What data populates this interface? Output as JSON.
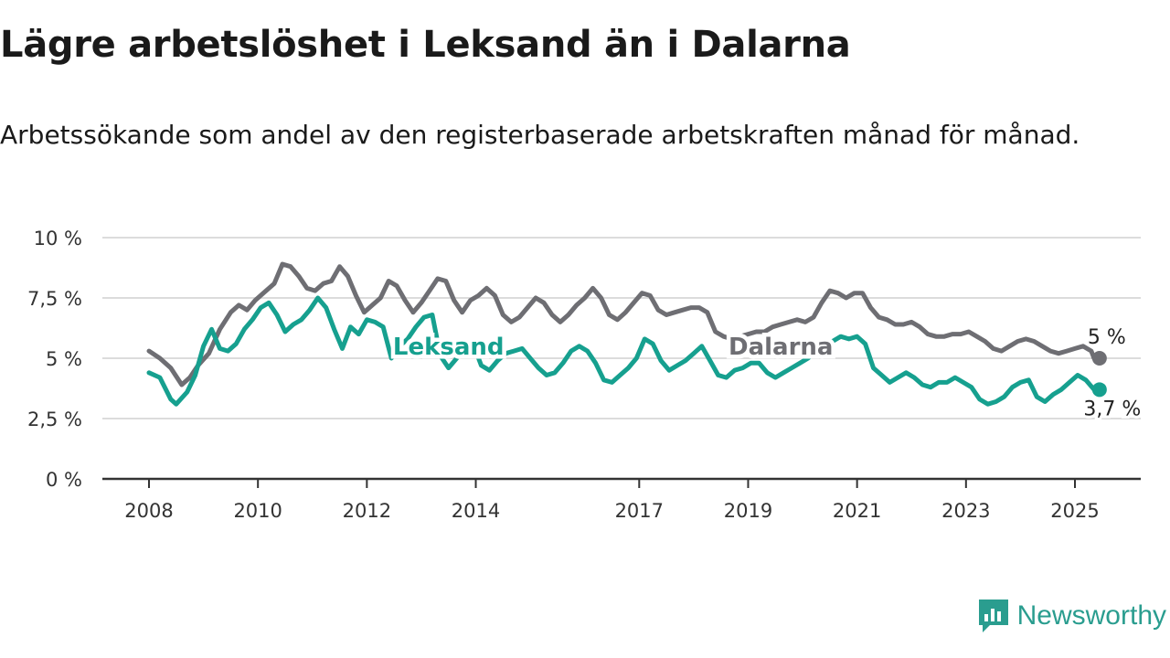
{
  "title": "Lägre arbetslöshet i Leksand än i Dalarna",
  "subtitle": "Arbetssökande som andel av den registerbaserade arbetskraften månad för månad.",
  "brand": {
    "name": "Newsworthy",
    "icon": "newsworthy-logo-icon",
    "color": "#2a9d8f"
  },
  "chart_data": {
    "type": "line",
    "xlabel": "",
    "ylabel": "",
    "xlim": [
      2008,
      2026.2
    ],
    "ylim": [
      0,
      10
    ],
    "x_ticks": [
      2008,
      2010,
      2012,
      2014,
      2017,
      2019,
      2021,
      2023,
      2025
    ],
    "x_tick_labels": [
      "2008",
      "2010",
      "2012",
      "2014",
      "2017",
      "2019",
      "2021",
      "2023",
      "2025"
    ],
    "y_ticks": [
      0,
      2.5,
      5,
      7.5,
      10
    ],
    "y_tick_labels": [
      "0 %",
      "2,5 %",
      "5 %",
      "7,5 %",
      "10 %"
    ],
    "grid": true,
    "series": [
      {
        "name": "Dalarna",
        "color": "#6e6e73",
        "end_label": "5 %",
        "x": [
          2008.0,
          2008.2,
          2008.4,
          2008.6,
          2008.75,
          2008.9,
          2009.1,
          2009.3,
          2009.5,
          2009.65,
          2009.8,
          2009.95,
          2010.1,
          2010.3,
          2010.45,
          2010.6,
          2010.75,
          2010.9,
          2011.05,
          2011.2,
          2011.35,
          2011.5,
          2011.65,
          2011.8,
          2011.95,
          2012.1,
          2012.25,
          2012.4,
          2012.55,
          2012.7,
          2012.85,
          2013.0,
          2013.15,
          2013.3,
          2013.45,
          2013.6,
          2013.75,
          2013.9,
          2014.05,
          2014.2,
          2014.35,
          2014.5,
          2014.65,
          2014.8,
          2014.95,
          2015.1,
          2015.25,
          2015.4,
          2015.55,
          2015.7,
          2015.85,
          2016.0,
          2016.15,
          2016.3,
          2016.45,
          2016.6,
          2016.75,
          2016.9,
          2017.05,
          2017.2,
          2017.35,
          2017.5,
          2017.65,
          2017.8,
          2017.95,
          2018.1,
          2018.25,
          2018.4,
          2018.55,
          2018.7,
          2018.85,
          2019.0,
          2019.15,
          2019.3,
          2019.45,
          2019.6,
          2019.75,
          2019.9,
          2020.05,
          2020.2,
          2020.35,
          2020.5,
          2020.65,
          2020.8,
          2020.95,
          2021.1,
          2021.25,
          2021.4,
          2021.55,
          2021.7,
          2021.85,
          2022.0,
          2022.15,
          2022.3,
          2022.45,
          2022.6,
          2022.75,
          2022.9,
          2023.05,
          2023.2,
          2023.35,
          2023.5,
          2023.65,
          2023.8,
          2023.95,
          2024.1,
          2024.25,
          2024.4,
          2024.55,
          2024.7,
          2024.85,
          2025.0,
          2025.15,
          2025.3,
          2025.35
        ],
        "y": [
          5.3,
          5.0,
          4.6,
          3.9,
          4.2,
          4.7,
          5.2,
          6.2,
          6.9,
          7.2,
          7.0,
          7.4,
          7.7,
          8.1,
          8.9,
          8.8,
          8.4,
          7.9,
          7.8,
          8.1,
          8.2,
          8.8,
          8.4,
          7.6,
          6.9,
          7.2,
          7.5,
          8.2,
          8.0,
          7.4,
          6.9,
          7.3,
          7.8,
          8.3,
          8.2,
          7.4,
          6.9,
          7.4,
          7.6,
          7.9,
          7.6,
          6.8,
          6.5,
          6.7,
          7.1,
          7.5,
          7.3,
          6.8,
          6.5,
          6.8,
          7.2,
          7.5,
          7.9,
          7.5,
          6.8,
          6.6,
          6.9,
          7.3,
          7.7,
          7.6,
          7.0,
          6.8,
          6.9,
          7.0,
          7.1,
          7.1,
          6.9,
          6.1,
          5.9,
          5.8,
          5.9,
          6.0,
          6.1,
          6.1,
          6.3,
          6.4,
          6.5,
          6.6,
          6.5,
          6.7,
          7.3,
          7.8,
          7.7,
          7.5,
          7.7,
          7.7,
          7.1,
          6.7,
          6.6,
          6.4,
          6.4,
          6.5,
          6.3,
          6.0,
          5.9,
          5.9,
          6.0,
          6.0,
          6.1,
          5.9,
          5.7,
          5.4,
          5.3,
          5.5,
          5.7,
          5.8,
          5.7,
          5.5,
          5.3,
          5.2,
          5.3,
          5.4,
          5.5,
          5.3,
          5.0
        ]
      },
      {
        "name": "Leksand",
        "color": "#16a08f",
        "end_label": "3,7 %",
        "x": [
          2008.0,
          2008.2,
          2008.4,
          2008.5,
          2008.7,
          2008.85,
          2009.0,
          2009.15,
          2009.3,
          2009.45,
          2009.6,
          2009.75,
          2009.9,
          2010.05,
          2010.2,
          2010.35,
          2010.5,
          2010.65,
          2010.8,
          2010.95,
          2011.1,
          2011.25,
          2011.4,
          2011.55,
          2011.7,
          2011.85,
          2012.0,
          2012.15,
          2012.3,
          2012.45,
          2012.6,
          2012.75,
          2012.9,
          2013.05,
          2013.2,
          2013.35,
          2013.5,
          2013.65,
          2013.8,
          2013.95,
          2014.1,
          2014.25,
          2014.4,
          2014.55,
          2014.7,
          2014.85,
          2015.0,
          2015.15,
          2015.3,
          2015.45,
          2015.6,
          2015.75,
          2015.9,
          2016.05,
          2016.2,
          2016.35,
          2016.5,
          2016.65,
          2016.8,
          2016.95,
          2017.1,
          2017.25,
          2017.4,
          2017.55,
          2017.7,
          2017.85,
          2018.0,
          2018.15,
          2018.3,
          2018.45,
          2018.6,
          2018.75,
          2018.9,
          2019.05,
          2019.2,
          2019.35,
          2019.5,
          2019.65,
          2019.8,
          2019.95,
          2020.1,
          2020.25,
          2020.4,
          2020.55,
          2020.7,
          2020.85,
          2021.0,
          2021.15,
          2021.3,
          2021.45,
          2021.6,
          2021.75,
          2021.9,
          2022.05,
          2022.2,
          2022.35,
          2022.5,
          2022.65,
          2022.8,
          2022.95,
          2023.1,
          2023.25,
          2023.4,
          2023.55,
          2023.7,
          2023.85,
          2024.0,
          2024.15,
          2024.3,
          2024.45,
          2024.6,
          2024.75,
          2024.9,
          2025.05,
          2025.2,
          2025.35
        ],
        "y": [
          4.4,
          4.2,
          3.3,
          3.1,
          3.6,
          4.3,
          5.5,
          6.2,
          5.4,
          5.3,
          5.6,
          6.2,
          6.6,
          7.1,
          7.3,
          6.8,
          6.1,
          6.4,
          6.6,
          7.0,
          7.5,
          7.1,
          6.2,
          5.4,
          6.3,
          6.0,
          6.6,
          6.5,
          6.3,
          5.0,
          5.5,
          5.8,
          6.3,
          6.7,
          6.8,
          5.1,
          4.6,
          5.0,
          5.5,
          5.6,
          4.7,
          4.5,
          4.9,
          5.2,
          5.3,
          5.4,
          5.0,
          4.6,
          4.3,
          4.4,
          4.8,
          5.3,
          5.5,
          5.3,
          4.8,
          4.1,
          4.0,
          4.3,
          4.6,
          5.0,
          5.8,
          5.6,
          4.9,
          4.5,
          4.7,
          4.9,
          5.2,
          5.5,
          4.9,
          4.3,
          4.2,
          4.5,
          4.6,
          4.8,
          4.8,
          4.4,
          4.2,
          4.4,
          4.6,
          4.8,
          5.0,
          5.3,
          5.5,
          5.7,
          5.9,
          5.8,
          5.9,
          5.6,
          4.6,
          4.3,
          4.0,
          4.2,
          4.4,
          4.2,
          3.9,
          3.8,
          4.0,
          4.0,
          4.2,
          4.0,
          3.8,
          3.3,
          3.1,
          3.2,
          3.4,
          3.8,
          4.0,
          4.1,
          3.4,
          3.2,
          3.5,
          3.7,
          4.0,
          4.3,
          4.1,
          3.7
        ]
      }
    ]
  }
}
